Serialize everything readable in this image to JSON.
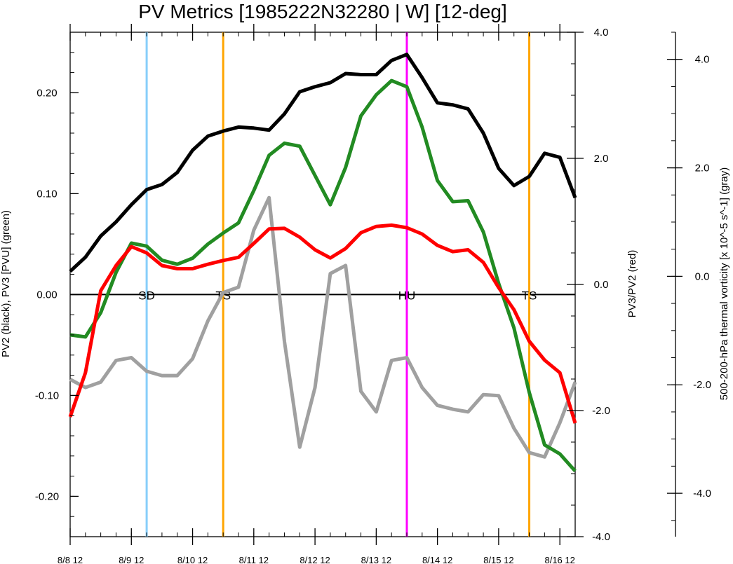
{
  "chart_data": {
    "type": "line",
    "title": "PV Metrics [1985222N32280 | W] [12-deg]",
    "left_axis": {
      "label": "PV2 (black), PV3 [PVU] (green)",
      "ylim": [
        -0.24,
        0.26
      ],
      "ticks": [
        -0.2,
        -0.1,
        0.0,
        0.1,
        0.2
      ],
      "tick_labels": [
        "-0.20",
        "-0.10",
        "0.00",
        "0.10",
        "0.20"
      ]
    },
    "right_axis": {
      "label": "PV3/PV2 (red)",
      "ylim": [
        -4.0,
        4.0
      ],
      "ticks": [
        -4.0,
        -2.0,
        0.0,
        2.0,
        4.0
      ],
      "tick_labels": [
        "-4.0",
        "-2.0",
        "0.0",
        "2.0",
        "4.0"
      ]
    },
    "far_right_axis": {
      "label": "500-200-hPa thermal vorticity [x 10^-5 s^-1] (gray)",
      "ylim": [
        -4.8,
        4.5
      ],
      "ticks": [
        -4.0,
        -2.0,
        0.0,
        2.0,
        4.0
      ],
      "tick_labels": [
        "-4.0",
        "-2.0",
        "0.0",
        "2.0",
        "4.0"
      ]
    },
    "x_axis": {
      "xlim": [
        0,
        33
      ],
      "ticks": [
        0,
        4,
        8,
        12,
        16,
        20,
        24,
        28,
        32
      ],
      "tick_labels": [
        "8/8 12",
        "8/9 12",
        "8/10 12",
        "8/11 12",
        "8/12 12",
        "8/13 12",
        "8/14 12",
        "8/15 12",
        "8/16 12"
      ]
    },
    "series": [
      {
        "color": "#000000",
        "axis": "left",
        "values": [
          0.023,
          0.037,
          0.058,
          0.072,
          0.089,
          0.104,
          0.109,
          0.121,
          0.143,
          0.157,
          0.162,
          0.166,
          0.165,
          0.163,
          0.179,
          0.201,
          0.206,
          0.21,
          0.219,
          0.218,
          0.218,
          0.232,
          0.238,
          0.215,
          0.19,
          0.188,
          0.184,
          0.16,
          0.125,
          0.108,
          0.117,
          0.14,
          0.136,
          0.096
        ]
      },
      {
        "color": "#228b22",
        "axis": "left",
        "values": [
          -0.04,
          -0.042,
          -0.018,
          0.022,
          0.051,
          0.048,
          0.034,
          0.03,
          0.036,
          0.05,
          0.061,
          0.071,
          0.103,
          0.138,
          0.15,
          0.147,
          0.118,
          0.089,
          0.126,
          0.177,
          0.198,
          0.212,
          0.206,
          0.166,
          0.113,
          0.092,
          0.093,
          0.062,
          0.011,
          -0.033,
          -0.097,
          -0.149,
          -0.158,
          -0.175
        ]
      },
      {
        "color": "#ff0000",
        "axis": "right",
        "values": [
          -2.1,
          -1.4,
          -0.1,
          0.3,
          0.6,
          0.5,
          0.3,
          0.25,
          0.25,
          0.32,
          0.38,
          0.43,
          0.65,
          0.88,
          0.89,
          0.75,
          0.55,
          0.42,
          0.57,
          0.82,
          0.92,
          0.94,
          0.9,
          0.8,
          0.62,
          0.52,
          0.55,
          0.35,
          -0.05,
          -0.4,
          -0.9,
          -1.2,
          -1.4,
          -2.2
        ]
      },
      {
        "color": "#a0a0a0",
        "axis": "far_right",
        "values": [
          -1.9,
          -2.05,
          -1.95,
          -1.55,
          -1.5,
          -1.75,
          -1.83,
          -1.83,
          -1.52,
          -0.82,
          -0.3,
          -0.2,
          0.85,
          1.45,
          -1.2,
          -3.15,
          -2.05,
          0.05,
          0.2,
          -2.12,
          -2.5,
          -1.55,
          -1.5,
          -2.05,
          -2.38,
          -2.45,
          -2.5,
          -2.18,
          -2.2,
          -2.8,
          -3.25,
          -3.33,
          -2.7,
          -1.95
        ]
      }
    ],
    "events": [
      {
        "label": "SD",
        "x": 5,
        "color": "#87cefa"
      },
      {
        "label": "TS",
        "x": 10,
        "color": "#ffa500"
      },
      {
        "label": "HU",
        "x": 22,
        "color": "#ff00ff"
      },
      {
        "label": "TS",
        "x": 30,
        "color": "#ffa500"
      }
    ]
  }
}
